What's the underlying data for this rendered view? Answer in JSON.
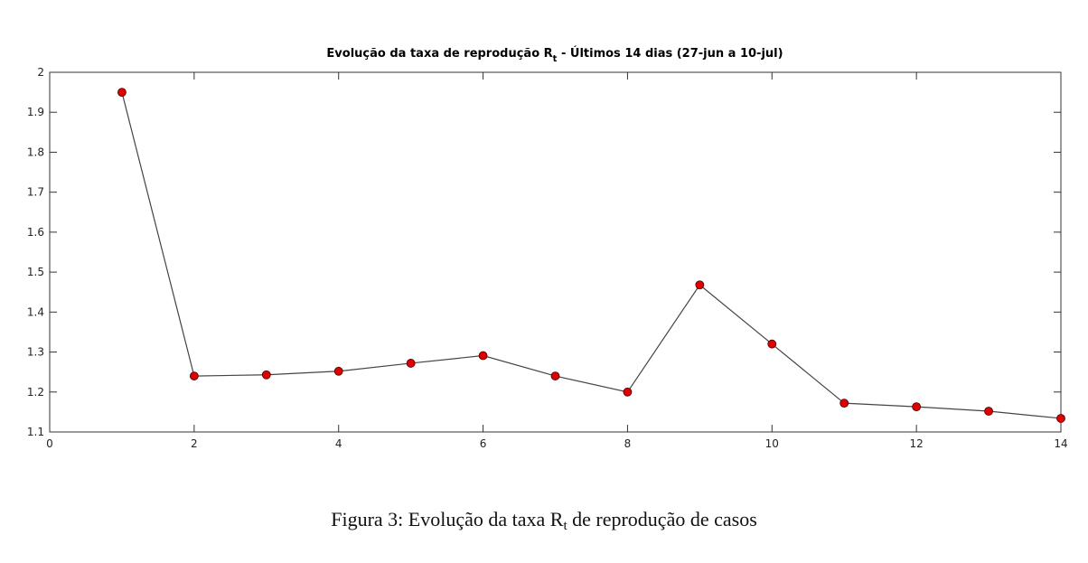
{
  "chart_data": {
    "type": "line",
    "title": [
      "Evolução da taxa de reprodução R",
      "t",
      " - Últimos 14 dias (27-jun a 10-jul)"
    ],
    "caption": [
      "Figura 3: Evolução da taxa R",
      "t",
      " de reprodução de casos"
    ],
    "x": [
      1,
      2,
      3,
      4,
      5,
      6,
      7,
      8,
      9,
      10,
      11,
      12,
      13,
      14
    ],
    "series": [
      {
        "color": "#e00000",
        "values": [
          1.95,
          1.24,
          1.243,
          1.252,
          1.272,
          1.291,
          1.24,
          1.2,
          1.468,
          1.32,
          1.172,
          1.163,
          1.152,
          1.134
        ]
      }
    ],
    "xlim": [
      0,
      14
    ],
    "xticks": [
      0,
      2,
      4,
      6,
      8,
      10,
      12,
      14
    ],
    "ylim": [
      1.1,
      2
    ],
    "yticks": [
      1.1,
      1.2,
      1.3,
      1.4,
      1.5,
      1.6,
      1.7,
      1.8,
      1.9,
      2
    ],
    "grid": false
  }
}
